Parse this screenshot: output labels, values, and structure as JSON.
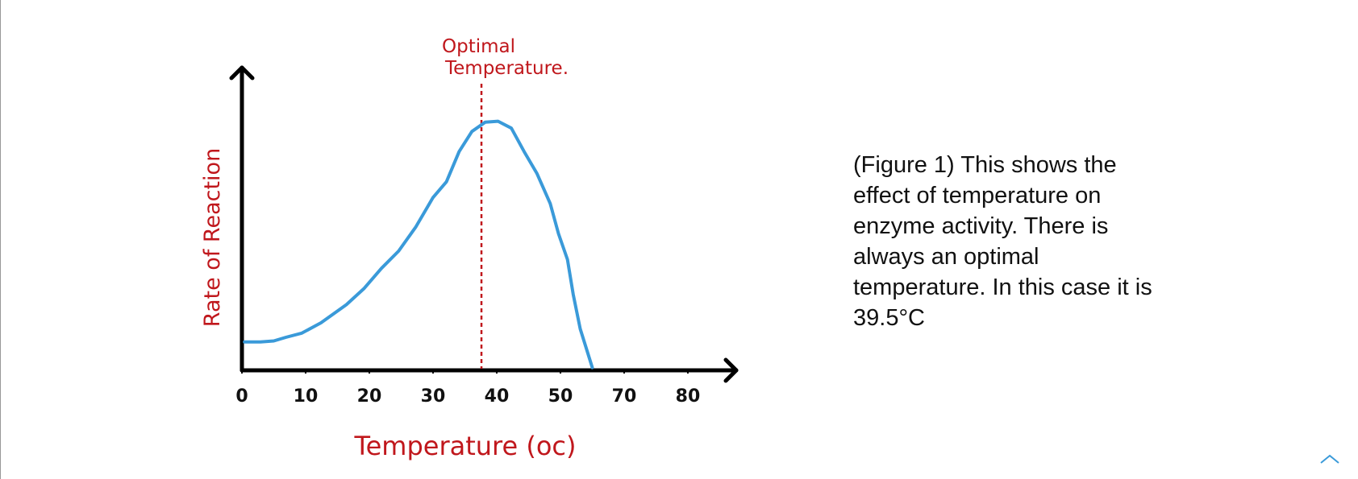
{
  "chart_data": {
    "type": "line",
    "y_label": "Rate of Reaction",
    "x_label": "Temperature (oc)",
    "annotation": {
      "lines": [
        "Optimal",
        "Temperature."
      ],
      "x": 37.6
    },
    "xlim": [
      0,
      77.6
    ],
    "ylim": [
      0,
      100
    ],
    "xticks": [
      0,
      10,
      20,
      30,
      40,
      50,
      {
        "value": 60,
        "label": "70"
      },
      {
        "value": 70,
        "label": "80"
      }
    ],
    "series": [
      {
        "name": "Rate",
        "color": "#3a9ad9",
        "x": [
          0.4,
          2.9,
          5.0,
          6.9,
          9.4,
          12.4,
          16.4,
          19.2,
          21.9,
          24.6,
          27.3,
          30.0,
          32.1,
          34.1,
          36.1,
          38.2,
          40.2,
          42.3,
          44.3,
          46.3,
          48.4,
          49.7,
          51.1,
          52.0,
          53.1,
          55.0
        ],
        "values": [
          9.4,
          9.4,
          9.7,
          10.9,
          12.3,
          15.7,
          21.7,
          27.1,
          33.7,
          39.4,
          47.4,
          57.1,
          62.3,
          72.3,
          78.9,
          82.0,
          82.3,
          80.0,
          72.3,
          65.1,
          55.1,
          45.1,
          36.6,
          25.1,
          13.7,
          0.9
        ]
      }
    ]
  },
  "caption_lines": [
    "(Figure 1) This shows the",
    "effect of temperature on",
    "enzyme activity. There is",
    "always an optimal",
    "temperature. In this case it is",
    "39.5°C"
  ]
}
